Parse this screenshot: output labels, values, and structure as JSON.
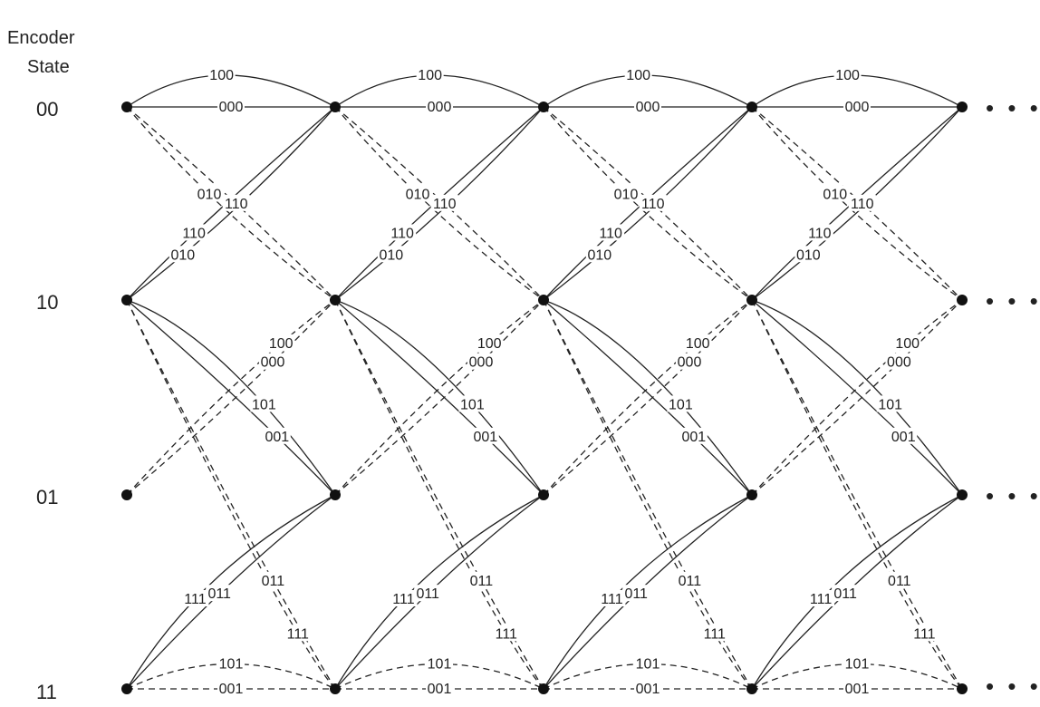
{
  "header": {
    "line1": "Encoder",
    "line2": "State"
  },
  "states": [
    "00",
    "10",
    "01",
    "11"
  ],
  "stage_count": 5,
  "continuation": "• • •",
  "transitions": [
    {
      "from": "00",
      "to": "00",
      "output": "100",
      "style": "solid"
    },
    {
      "from": "00",
      "to": "00",
      "output": "000",
      "style": "solid"
    },
    {
      "from": "00",
      "to": "10",
      "output": "110",
      "style": "dashed"
    },
    {
      "from": "00",
      "to": "10",
      "output": "010",
      "style": "dashed"
    },
    {
      "from": "10",
      "to": "00",
      "output": "110",
      "style": "solid"
    },
    {
      "from": "10",
      "to": "00",
      "output": "010",
      "style": "solid"
    },
    {
      "from": "01",
      "to": "10",
      "output": "100",
      "style": "dashed"
    },
    {
      "from": "01",
      "to": "10",
      "output": "000",
      "style": "dashed"
    },
    {
      "from": "10",
      "to": "01",
      "output": "101",
      "style": "solid"
    },
    {
      "from": "10",
      "to": "01",
      "output": "001",
      "style": "solid"
    },
    {
      "from": "11",
      "to": "01",
      "output": "111",
      "style": "solid"
    },
    {
      "from": "11",
      "to": "01",
      "output": "011",
      "style": "solid"
    },
    {
      "from": "10",
      "to": "11",
      "output": "111",
      "style": "dashed"
    },
    {
      "from": "10",
      "to": "11",
      "output": "011",
      "style": "dashed"
    },
    {
      "from": "11",
      "to": "11",
      "output": "101",
      "style": "dashed"
    },
    {
      "from": "11",
      "to": "11",
      "output": "001",
      "style": "dashed"
    }
  ]
}
